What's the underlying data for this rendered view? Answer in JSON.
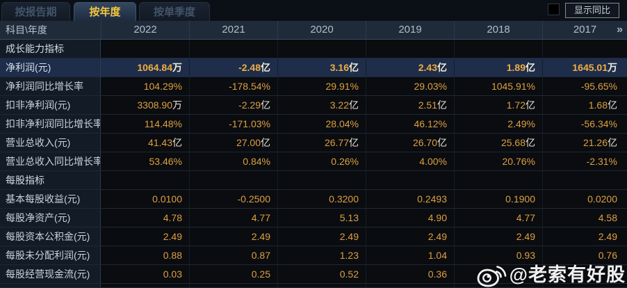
{
  "tabs": [
    {
      "label": "按报告期",
      "active": false
    },
    {
      "label": "按年度",
      "active": true
    },
    {
      "label": "按单季度",
      "active": false
    }
  ],
  "controls": {
    "show_yoy_label": "显示同比",
    "checkbox_checked": false
  },
  "table": {
    "corner_label": "科目\\年度",
    "years": [
      "2022",
      "2021",
      "2020",
      "2019",
      "2018",
      "2017"
    ],
    "more_icon": "»",
    "rows": [
      {
        "type": "section",
        "label": "成长能力指标",
        "values": [
          "",
          "",
          "",
          "",
          "",
          ""
        ]
      },
      {
        "type": "highlight",
        "label": "净利润(元)",
        "values": [
          "1064.84万",
          "-2.48亿",
          "3.16亿",
          "2.43亿",
          "1.89亿",
          "1645.01万"
        ]
      },
      {
        "type": "data",
        "label": "净利润同比增长率",
        "values": [
          "104.29%",
          "-178.54%",
          "29.91%",
          "29.03%",
          "1045.91%",
          "-95.65%"
        ]
      },
      {
        "type": "data",
        "label": "扣非净利润(元)",
        "values": [
          "3308.90万",
          "-2.29亿",
          "3.22亿",
          "2.51亿",
          "1.72亿",
          "1.68亿"
        ]
      },
      {
        "type": "data",
        "label": "扣非净利润同比增长率",
        "values": [
          "114.48%",
          "-171.03%",
          "28.04%",
          "46.12%",
          "2.49%",
          "-56.34%"
        ]
      },
      {
        "type": "data",
        "label": "营业总收入(元)",
        "values": [
          "41.43亿",
          "27.00亿",
          "26.77亿",
          "26.70亿",
          "25.68亿",
          "21.26亿"
        ]
      },
      {
        "type": "data",
        "label": "营业总收入同比增长率",
        "values": [
          "53.46%",
          "0.84%",
          "0.26%",
          "4.00%",
          "20.76%",
          "-2.31%"
        ]
      },
      {
        "type": "section",
        "label": "每股指标",
        "values": [
          "",
          "",
          "",
          "",
          "",
          ""
        ]
      },
      {
        "type": "data",
        "label": "基本每股收益(元)",
        "values": [
          "0.0100",
          "-0.2500",
          "0.3200",
          "0.2493",
          "0.1900",
          "0.0200"
        ]
      },
      {
        "type": "data",
        "label": "每股净资产(元)",
        "values": [
          "4.78",
          "4.77",
          "5.13",
          "4.90",
          "4.77",
          "4.58"
        ]
      },
      {
        "type": "data",
        "label": "每股资本公积金(元)",
        "values": [
          "2.49",
          "2.49",
          "2.49",
          "2.49",
          "2.49",
          "2.49"
        ]
      },
      {
        "type": "data",
        "label": "每股未分配利润(元)",
        "values": [
          "0.88",
          "0.87",
          "1.23",
          "1.04",
          "0.93",
          "0.76"
        ]
      },
      {
        "type": "data",
        "label": "每股经营现金流(元)",
        "values": [
          "0.03",
          "0.25",
          "0.52",
          "0.36",
          "",
          ""
        ]
      }
    ]
  },
  "watermark": {
    "icon": "weibo-icon",
    "text": "@老索有好股"
  },
  "colors": {
    "value_orange": "#dda041",
    "highlight_row_bg": "#1e2d4a",
    "active_tab_text": "#f7c83d",
    "header_bg": "#202b39",
    "label_column_bg": "#131b27"
  }
}
